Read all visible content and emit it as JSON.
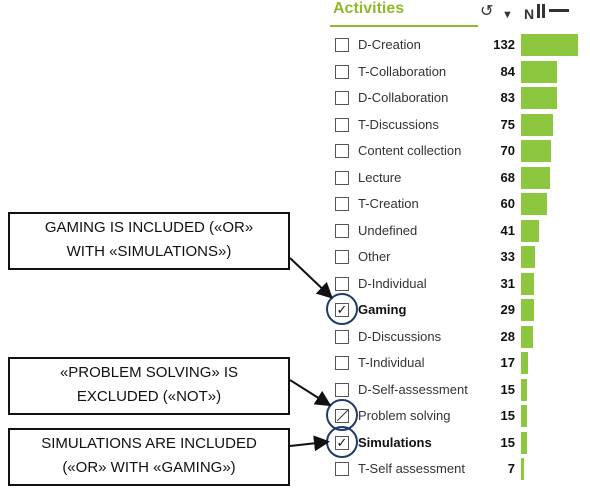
{
  "panel": {
    "title": "Activities",
    "tools": {
      "sort_label": "N"
    },
    "accent_color": "#8dc63f",
    "items": [
      {
        "label": "D-Creation",
        "count": "132",
        "value": 132,
        "state": "unchecked"
      },
      {
        "label": "T-Collaboration",
        "count": "84",
        "value": 84,
        "state": "unchecked"
      },
      {
        "label": "D-Collaboration",
        "count": "83",
        "value": 83,
        "state": "unchecked"
      },
      {
        "label": "T-Discussions",
        "count": "75",
        "value": 75,
        "state": "unchecked"
      },
      {
        "label": "Content collection",
        "count": "70",
        "value": 70,
        "state": "unchecked"
      },
      {
        "label": "Lecture",
        "count": "68",
        "value": 68,
        "state": "unchecked"
      },
      {
        "label": "T-Creation",
        "count": "60",
        "value": 60,
        "state": "unchecked"
      },
      {
        "label": "Undefined",
        "count": "41",
        "value": 41,
        "state": "unchecked"
      },
      {
        "label": "Other",
        "count": "33",
        "value": 33,
        "state": "unchecked"
      },
      {
        "label": "D-Individual",
        "count": "31",
        "value": 31,
        "state": "unchecked"
      },
      {
        "label": "Gaming",
        "count": "29",
        "value": 29,
        "state": "checked"
      },
      {
        "label": "D-Discussions",
        "count": "28",
        "value": 28,
        "state": "unchecked"
      },
      {
        "label": "T-Individual",
        "count": "17",
        "value": 17,
        "state": "unchecked"
      },
      {
        "label": "D-Self-assessment",
        "count": "15",
        "value": 15,
        "state": "unchecked"
      },
      {
        "label": "Problem solving",
        "count": "15",
        "value": 15,
        "state": "excluded"
      },
      {
        "label": "Simulations",
        "count": "15",
        "value": 15,
        "state": "checked"
      },
      {
        "label": "T-Self assessment",
        "count": "7",
        "value": 7,
        "state": "unchecked"
      }
    ]
  },
  "callouts": {
    "gaming": {
      "line1": "GAMING IS INCLUDED («OR»",
      "line2": "WITH «SIMULATIONS»)"
    },
    "problem": {
      "line1": "«PROBLEM SOLVING» IS",
      "line2": "EXCLUDED («NOT»)"
    },
    "simulations": {
      "line1": "SIMULATIONS ARE INCLUDED",
      "line2": "(«OR» WITH «GAMING»)"
    }
  }
}
